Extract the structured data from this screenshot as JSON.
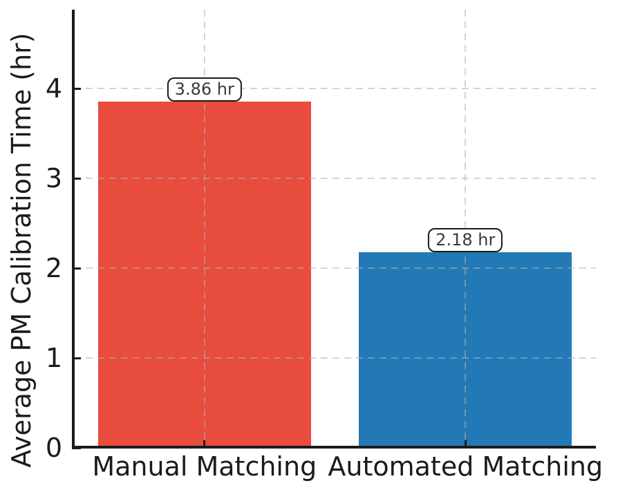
{
  "chart_data": {
    "type": "bar",
    "title": "",
    "categories": [
      "Manual Matching",
      "Automated Matching"
    ],
    "values": [
      3.86,
      2.18
    ],
    "bar_labels": [
      "3.86 hr",
      "2.18 hr"
    ],
    "bar_colors": [
      "#e74c3c",
      "#2279b5"
    ],
    "xlabel": "",
    "ylabel": "Average PM Calibration Time (hr)",
    "ylim": [
      0,
      4.88
    ],
    "yticks": [
      0,
      1,
      2,
      3,
      4
    ],
    "grid": "dashed",
    "grid_color": "#b0b0b0",
    "legend_position": "none",
    "spine_color": "#1b1b1b",
    "annotation_text_color": "#3a3a3a",
    "annotation_border_color": "#1a1a1a"
  }
}
